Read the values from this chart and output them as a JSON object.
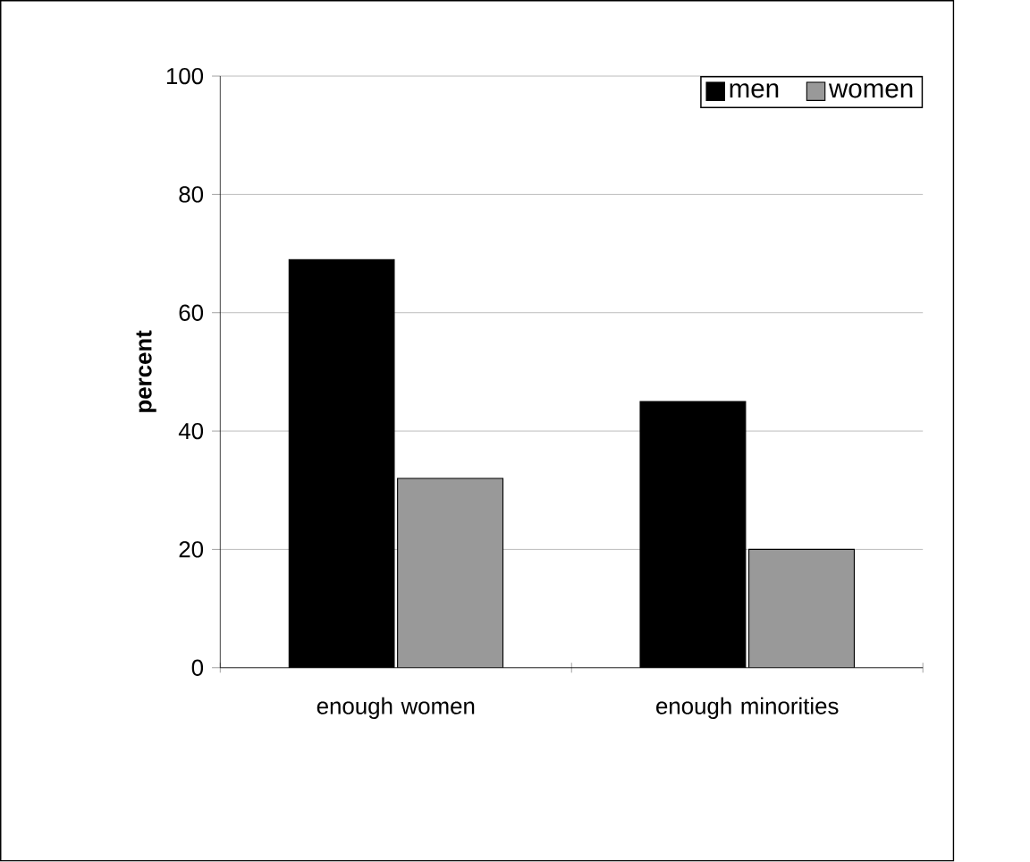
{
  "chart_data": {
    "type": "bar",
    "ylabel": "percent",
    "categories": [
      "enough women",
      "enough minorities"
    ],
    "series": [
      {
        "name": "men",
        "color": "#000000",
        "values": [
          69,
          45
        ]
      },
      {
        "name": "women",
        "color": "#999999",
        "values": [
          32,
          20
        ]
      }
    ],
    "ylim": [
      0,
      100
    ],
    "yticks": [
      0,
      20,
      40,
      60,
      80,
      100
    ],
    "grid": "y",
    "legend": "top right"
  }
}
